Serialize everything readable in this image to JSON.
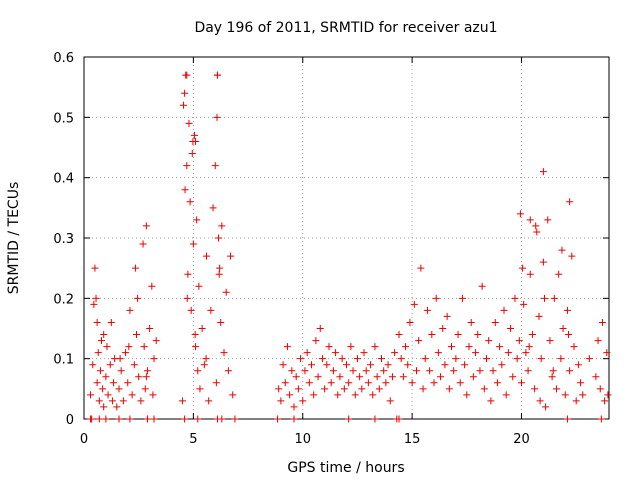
{
  "chart_data": {
    "type": "scatter",
    "title": "Day 196 of 2011, SRMTID for receiver azu1",
    "xlabel": "GPS time / hours",
    "ylabel": "SRMTID / TECUs",
    "xlim": [
      0,
      24
    ],
    "ylim": [
      0,
      0.6
    ],
    "xticks": [
      0,
      5,
      10,
      15,
      20
    ],
    "yticks": [
      0,
      0.1,
      0.2,
      0.3,
      0.4,
      0.5,
      0.6
    ],
    "xtick_labels": [
      "0",
      "5",
      "10",
      "15",
      "20"
    ],
    "ytick_labels": [
      "0",
      "0.1",
      "0.2",
      "0.3",
      "0.4",
      "0.5",
      "0.6"
    ],
    "grid": true,
    "marker": "+",
    "series": [
      {
        "name": "SRMTID",
        "color": "#ee0000",
        "x": [
          0.3,
          0.4,
          0.5,
          0.55,
          0.6,
          0.6,
          0.65,
          0.7,
          0.75,
          0.8,
          0.85,
          0.9,
          1.0,
          1.05,
          1.1,
          1.2,
          1.3,
          1.35,
          1.4,
          1.5,
          1.6,
          1.7,
          1.8,
          1.9,
          2.0,
          2.1,
          2.2,
          2.3,
          2.35,
          2.4,
          2.5,
          2.6,
          2.7,
          2.75,
          2.8,
          2.85,
          2.9,
          3.0,
          3.1,
          3.2,
          3.3,
          0.45,
          0.9,
          1.25,
          1.65,
          2.05,
          2.45,
          2.85,
          3.15,
          4.5,
          4.55,
          4.6,
          4.65,
          4.7,
          4.75,
          4.8,
          4.85,
          4.9,
          4.95,
          5.0,
          5.05,
          5.1,
          5.15,
          5.2,
          5.25,
          5.3,
          5.4,
          5.5,
          5.6,
          5.7,
          5.8,
          5.9,
          6.0,
          6.05,
          6.1,
          6.15,
          6.2,
          6.25,
          6.3,
          6.4,
          6.5,
          6.6,
          6.7,
          6.8,
          4.62,
          4.72,
          4.98,
          5.08,
          5.58,
          6.08,
          6.18,
          8.9,
          9.0,
          9.1,
          9.2,
          9.3,
          9.4,
          9.5,
          9.6,
          9.7,
          9.8,
          9.9,
          10.0,
          10.1,
          10.2,
          10.3,
          10.4,
          10.5,
          10.6,
          10.7,
          10.8,
          10.9,
          11.0,
          11.1,
          11.2,
          11.3,
          11.4,
          11.5,
          11.6,
          11.7,
          11.8,
          11.9,
          12.0,
          12.1,
          12.2,
          12.3,
          12.4,
          12.5,
          12.6,
          12.7,
          12.8,
          12.9,
          13.0,
          13.1,
          13.2,
          13.3,
          13.4,
          13.5,
          13.6,
          13.7,
          13.8,
          13.9,
          14.0,
          14.1,
          14.2,
          14.4,
          14.5,
          14.6,
          14.7,
          14.8,
          14.9,
          15.0,
          15.1,
          15.2,
          15.3,
          15.4,
          15.5,
          15.6,
          15.7,
          15.8,
          15.9,
          16.0,
          16.1,
          16.2,
          16.3,
          16.4,
          16.5,
          16.6,
          16.7,
          16.8,
          16.9,
          17.0,
          17.1,
          17.2,
          17.3,
          17.4,
          17.5,
          17.6,
          17.7,
          17.8,
          17.9,
          18.0,
          18.1,
          18.2,
          18.3,
          18.4,
          18.5,
          18.6,
          18.7,
          18.8,
          18.9,
          19.0,
          19.1,
          19.2,
          19.3,
          19.4,
          19.5,
          19.6,
          19.7,
          19.8,
          19.9,
          20.0,
          20.1,
          20.2,
          20.3,
          20.4,
          20.5,
          20.6,
          20.7,
          20.8,
          20.9,
          21.0,
          21.1,
          21.2,
          21.3,
          21.4,
          21.5,
          21.6,
          21.7,
          21.8,
          21.9,
          22.0,
          22.1,
          22.2,
          22.3,
          22.4,
          22.5,
          22.6,
          22.7,
          22.8,
          23.1,
          23.4,
          23.5,
          23.6,
          23.7,
          23.8,
          23.9,
          20.05,
          20.35,
          20.65,
          20.85,
          21.05,
          21.45,
          21.85,
          22.15,
          23.95,
          0.3,
          0.35,
          0.7,
          1.0,
          1.6,
          2.1,
          2.9,
          3.2,
          4.6,
          5.2,
          6.1,
          6.3,
          6.9,
          8.85,
          9.6,
          12.1,
          13.3,
          14.3,
          14.4,
          22.1,
          23.65
        ],
        "y": [
          0.04,
          0.09,
          0.25,
          0.2,
          0.16,
          0.06,
          0.11,
          0.03,
          0.08,
          0.13,
          0.05,
          0.02,
          0.07,
          0.12,
          0.04,
          0.09,
          0.03,
          0.06,
          0.1,
          0.02,
          0.05,
          0.08,
          0.03,
          0.11,
          0.06,
          0.18,
          0.04,
          0.09,
          0.25,
          0.14,
          0.07,
          0.03,
          0.29,
          0.12,
          0.05,
          0.32,
          0.08,
          0.15,
          0.22,
          0.1,
          0.13,
          0.19,
          0.14,
          0.16,
          0.1,
          0.12,
          0.2,
          0.07,
          0.04,
          0.03,
          0.52,
          0.54,
          0.57,
          0.42,
          0.24,
          0.49,
          0.36,
          0.18,
          0.44,
          0.29,
          0.47,
          0.12,
          0.33,
          0.08,
          0.22,
          0.05,
          0.15,
          0.09,
          0.27,
          0.03,
          0.18,
          0.35,
          0.42,
          0.06,
          0.57,
          0.3,
          0.25,
          0.16,
          0.32,
          0.11,
          0.21,
          0.08,
          0.27,
          0.04,
          0.38,
          0.2,
          0.46,
          0.14,
          0.1,
          0.5,
          0.24,
          0.05,
          0.03,
          0.09,
          0.06,
          0.12,
          0.04,
          0.08,
          0.02,
          0.07,
          0.05,
          0.1,
          0.03,
          0.08,
          0.11,
          0.06,
          0.09,
          0.04,
          0.13,
          0.07,
          0.15,
          0.1,
          0.05,
          0.09,
          0.12,
          0.06,
          0.08,
          0.11,
          0.04,
          0.07,
          0.1,
          0.05,
          0.09,
          0.06,
          0.12,
          0.08,
          0.04,
          0.1,
          0.07,
          0.05,
          0.11,
          0.08,
          0.06,
          0.09,
          0.04,
          0.12,
          0.07,
          0.05,
          0.1,
          0.08,
          0.06,
          0.09,
          0.03,
          0.07,
          0.11,
          0.14,
          0.1,
          0.07,
          0.12,
          0.09,
          0.16,
          0.06,
          0.19,
          0.08,
          0.13,
          0.25,
          0.05,
          0.1,
          0.18,
          0.08,
          0.14,
          0.06,
          0.2,
          0.11,
          0.07,
          0.15,
          0.09,
          0.17,
          0.05,
          0.12,
          0.08,
          0.1,
          0.14,
          0.06,
          0.2,
          0.09,
          0.04,
          0.12,
          0.16,
          0.07,
          0.11,
          0.14,
          0.08,
          0.22,
          0.05,
          0.1,
          0.13,
          0.03,
          0.08,
          0.16,
          0.06,
          0.12,
          0.09,
          0.18,
          0.04,
          0.11,
          0.15,
          0.07,
          0.2,
          0.1,
          0.13,
          0.06,
          0.19,
          0.11,
          0.08,
          0.24,
          0.14,
          0.05,
          0.31,
          0.17,
          0.1,
          0.26,
          0.02,
          0.33,
          0.13,
          0.07,
          0.2,
          0.05,
          0.24,
          0.1,
          0.15,
          0.04,
          0.18,
          0.08,
          0.27,
          0.12,
          0.03,
          0.09,
          0.06,
          0.04,
          0.1,
          0.07,
          0.13,
          0.05,
          0.16,
          0.03,
          0.11,
          0.25,
          0.12,
          0.32,
          0.03,
          0.2,
          0.08,
          0.28,
          0.14,
          0.04,
          0.0,
          0.0,
          0.0,
          0.0,
          0.0,
          0.0,
          0.0,
          0.0,
          0.0,
          0.0,
          0.0,
          0.0,
          0.0,
          0.0,
          0.0,
          0.0,
          0.0,
          0.0,
          0.0,
          0.0,
          0.0
        ]
      }
    ],
    "outliers": {
      "x": [
        6.1,
        5.1,
        4.7,
        21.0,
        22.2,
        20.4,
        19.95
      ],
      "y": [
        0.57,
        0.46,
        0.57,
        0.41,
        0.36,
        0.33,
        0.34
      ]
    }
  }
}
